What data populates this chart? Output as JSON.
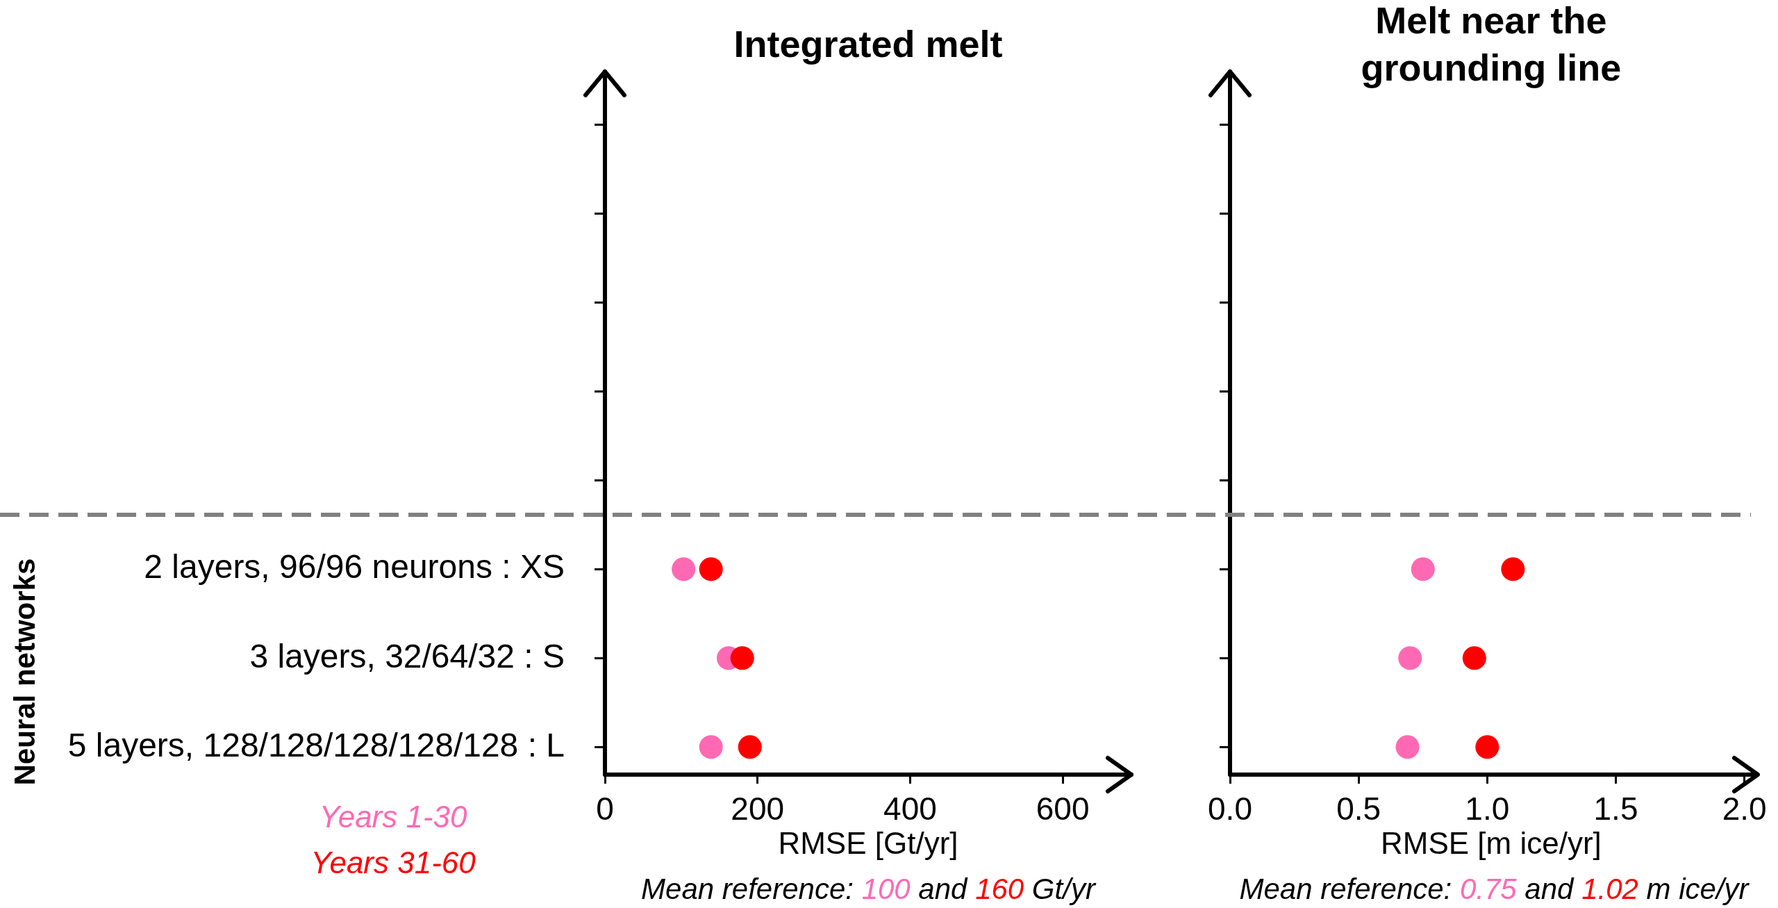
{
  "chart_data": [
    {
      "type": "scatter",
      "title": "Integrated melt",
      "xlabel": "RMSE [Gt/yr]",
      "ylabel": "Neural networks",
      "orientation": "horizontal",
      "categories": [
        null,
        null,
        null,
        null,
        null,
        "2 layers, 96/96 neurons : XS",
        "3 layers, 32/64/32 : S",
        "5 layers, 128/128/128/128/128 : L"
      ],
      "series": [
        {
          "name": "Years 1-30",
          "color": "#ff69b4",
          "values": [
            null,
            null,
            null,
            null,
            null,
            103,
            162,
            139
          ]
        },
        {
          "name": "Years 31-60",
          "color": "#ff0000",
          "values": [
            null,
            null,
            null,
            null,
            null,
            139,
            180,
            190
          ]
        }
      ],
      "xlim": [
        0,
        690
      ],
      "xticks": [
        0,
        200,
        400,
        600
      ],
      "marker": "circle",
      "legend": "bottom left",
      "annotations": [
        "Mean reference: 100 and 160 Gt/yr"
      ]
    },
    {
      "type": "scatter",
      "title": "Melt near the grounding line",
      "xlabel": "RMSE [m ice/yr]",
      "orientation": "horizontal",
      "categories": [
        null,
        null,
        null,
        null,
        null,
        null,
        null,
        null
      ],
      "series": [
        {
          "color": "#ff69b4",
          "values": [
            null,
            null,
            null,
            null,
            null,
            0.75,
            0.7,
            0.69
          ]
        },
        {
          "color": "#ff0000",
          "values": [
            null,
            null,
            null,
            null,
            null,
            1.1,
            0.95,
            1.0
          ]
        }
      ],
      "xlim": [
        0,
        2.03
      ],
      "xticks": [
        {
          "value": 0,
          "label": "0.0"
        },
        0.5,
        {
          "value": 1,
          "label": "1.0"
        },
        1.5,
        {
          "value": 2,
          "label": "2.0"
        }
      ],
      "marker": "circle",
      "tick_labels": "x",
      "annotations": [
        "Mean reference: 0.75 and 1.02 m ice/yr"
      ]
    }
  ]
}
